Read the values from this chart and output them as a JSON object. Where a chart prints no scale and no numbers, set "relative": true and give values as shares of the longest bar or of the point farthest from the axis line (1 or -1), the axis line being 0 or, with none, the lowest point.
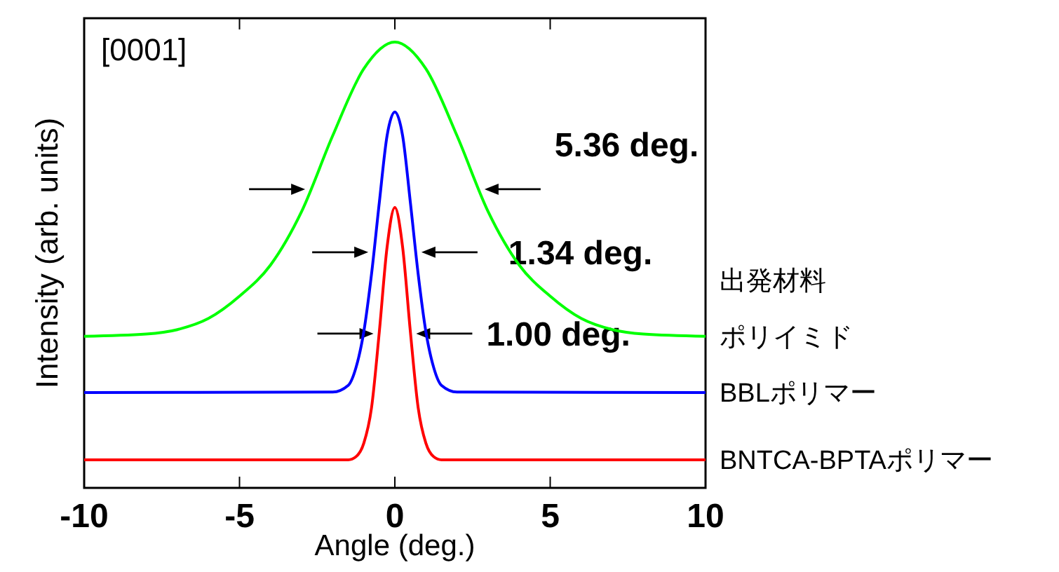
{
  "chart_data": {
    "type": "line",
    "relative": true,
    "xlabel": "Angle (deg.)",
    "ylabel": "Intensity (arb. units)",
    "xlim": [
      -10,
      10
    ],
    "xticks": [
      -10,
      -5,
      0,
      5,
      10
    ],
    "legend": "right",
    "legend_title": "出発材料",
    "annotations": [
      "[0001]",
      "5.36 deg.",
      "1.34 deg.",
      "1.00 deg."
    ],
    "series": [
      {
        "name": "ポリイミド",
        "color": "#00ff00",
        "x": [
          -10,
          -8,
          -7,
          -6,
          -5,
          -4,
          -3,
          -2,
          -1,
          0,
          1,
          2,
          3,
          4,
          5,
          6,
          7,
          8,
          10
        ],
        "values": [
          0.34,
          0.345,
          0.355,
          0.38,
          0.43,
          0.5,
          0.62,
          0.79,
          0.94,
          1.0,
          0.94,
          0.79,
          0.62,
          0.5,
          0.43,
          0.38,
          0.355,
          0.345,
          0.34
        ]
      },
      {
        "name": "BBLポリマー",
        "color": "#0000ff",
        "x": [
          -10,
          -2,
          -1.5,
          -1.25,
          -1,
          -0.75,
          -0.5,
          -0.25,
          0,
          0.25,
          0.5,
          0.75,
          1,
          1.25,
          1.5,
          2,
          10
        ],
        "values": [
          0.214,
          0.215,
          0.23,
          0.27,
          0.35,
          0.48,
          0.64,
          0.79,
          0.843,
          0.79,
          0.64,
          0.48,
          0.35,
          0.27,
          0.23,
          0.215,
          0.214
        ]
      },
      {
        "name": "BNTCA-BPTAポリマー",
        "color": "#ff0000",
        "x": [
          -10,
          -1.5,
          -1.25,
          -1,
          -0.75,
          -0.5,
          -0.25,
          0,
          0.25,
          0.5,
          0.75,
          1,
          1.25,
          1.5,
          10
        ],
        "values": [
          0.063,
          0.063,
          0.07,
          0.1,
          0.18,
          0.35,
          0.54,
          0.629,
          0.54,
          0.35,
          0.18,
          0.1,
          0.07,
          0.063,
          0.063
        ]
      }
    ]
  }
}
